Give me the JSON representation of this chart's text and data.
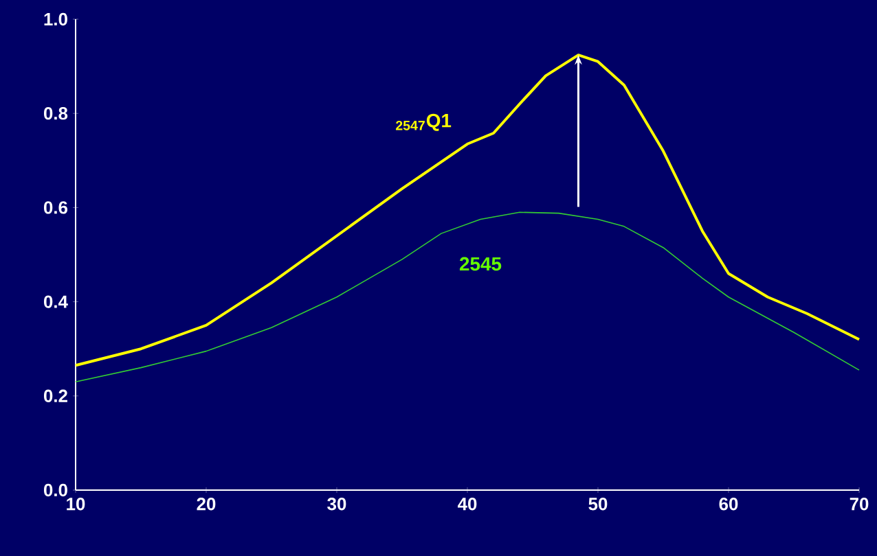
{
  "chart_data": {
    "type": "line",
    "xlim": [
      10,
      70
    ],
    "ylim": [
      0,
      1
    ],
    "xticks": [
      10,
      20,
      30,
      40,
      50,
      60,
      70
    ],
    "yticks": [
      {
        "value": 0,
        "label": "0.0"
      },
      {
        "value": 0.2,
        "label": "0.2"
      },
      {
        "value": 0.4,
        "label": "0.4"
      },
      {
        "value": 0.6,
        "label": "0.6"
      },
      {
        "value": 0.8,
        "label": "0.8"
      },
      {
        "value": 1,
        "label": "1.0"
      }
    ],
    "grid": false,
    "legend": false,
    "marker": "none",
    "series": [
      {
        "name": "$_{2547}$Q1",
        "color": "#ffff00",
        "x": [
          10,
          15,
          20,
          25,
          30,
          35,
          40,
          42,
          44,
          46,
          48.5,
          50,
          52,
          55,
          58,
          60,
          63,
          66,
          70
        ],
        "values": [
          0.265,
          0.3,
          0.35,
          0.44,
          0.54,
          0.64,
          0.735,
          0.758,
          0.82,
          0.88,
          0.924,
          0.91,
          0.86,
          0.72,
          0.55,
          0.46,
          0.41,
          0.375,
          0.32
        ]
      },
      {
        "name": "2545",
        "color": "#33cc33",
        "x": [
          10,
          15,
          20,
          25,
          30,
          35,
          38,
          41,
          44,
          47,
          50,
          52,
          55,
          58,
          60,
          65,
          70
        ],
        "values": [
          0.23,
          0.26,
          0.295,
          0.345,
          0.41,
          0.49,
          0.545,
          0.575,
          0.59,
          0.588,
          0.575,
          0.56,
          0.515,
          0.45,
          0.41,
          0.335,
          0.255
        ]
      }
    ]
  }
}
